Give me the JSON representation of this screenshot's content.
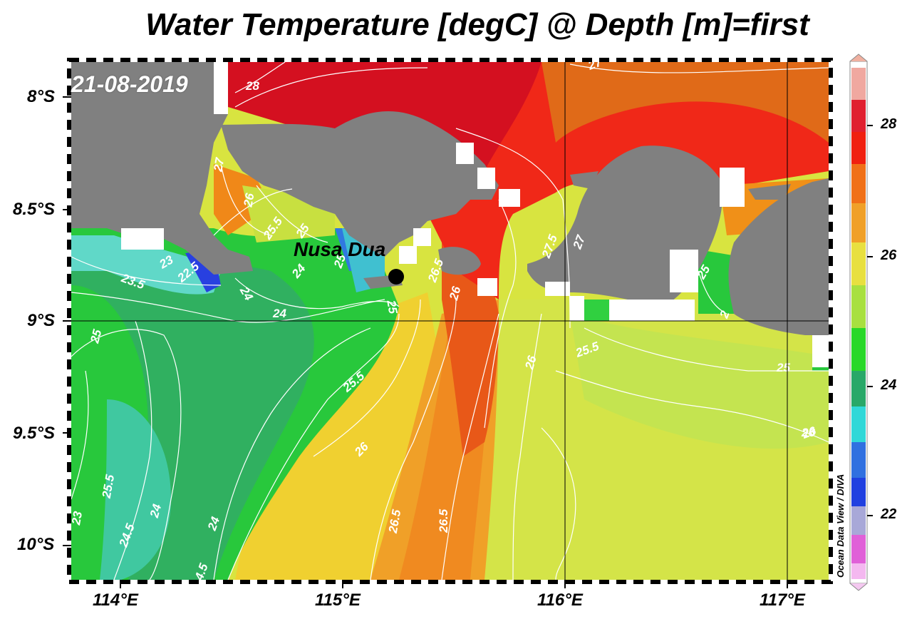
{
  "title": "Water Temperature [degC] @ Depth [m]=first",
  "date_label": "21-08-2019",
  "station": {
    "name": "Nusa Dua",
    "lon": 115.23,
    "lat": -8.81
  },
  "credit": "Ocean Data View / DIVA",
  "axes": {
    "lon_ticks": [
      "114°E",
      "115°E",
      "116°E",
      "117°E"
    ],
    "lat_ticks": [
      "8°S",
      "8.5°S",
      "9°S",
      "9.5°S",
      "10°S"
    ],
    "lon_range": [
      113.78,
      117.18
    ],
    "lat_range": [
      -7.85,
      -10.18
    ]
  },
  "colorbar": {
    "ticks": [
      "22",
      "24",
      "26",
      "28"
    ],
    "range": [
      21,
      29
    ],
    "colors": [
      "#f4b8f0",
      "#e060d8",
      "#a8a8d8",
      "#2040e0",
      "#30d8d8",
      "#28a868",
      "#28d828",
      "#c8e840",
      "#f0e040",
      "#f08818",
      "#f02010",
      "#d01020",
      "#f0a8a0"
    ]
  },
  "contour_labels": [
    "28",
    "27",
    "27",
    "26",
    "25.5",
    "25",
    "23",
    "22.5",
    "23.5",
    "24",
    "24",
    "24",
    "25",
    "26.5",
    "26",
    "25",
    "27.5",
    "27",
    "25",
    "25.5",
    "25",
    "26",
    "25.5",
    "26",
    "26",
    "26.5",
    "26.5",
    "25",
    "24.5",
    "24",
    "24",
    "4.5",
    "2",
    "26",
    "25.5",
    "23"
  ],
  "colors": {
    "land": "#808080",
    "grid": "#000000",
    "contour": "#ffffff"
  }
}
